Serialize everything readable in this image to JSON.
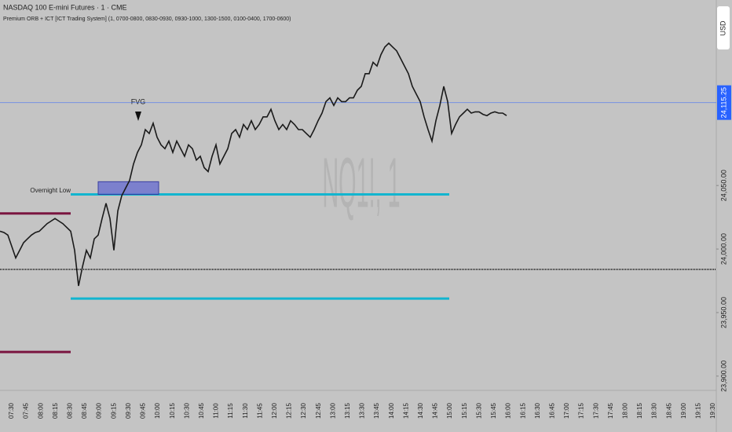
{
  "chart_data": {
    "type": "line",
    "title": "NASDAQ 100 E-mini Futures · 1 · CME",
    "subtitle": "Premium ORB + ICT [ICT Trading System] (1, 0700-0800, 0830-0930, 0930-1000, 1300-1500, 0100-0400, 1700-0600)",
    "watermark": "NQ1!, 1",
    "currency": "USD",
    "annotations": [
      "FVG",
      "Overnight Low"
    ],
    "color": "#1a1a1a",
    "ylim": [
      23890,
      24196
    ],
    "yticks": [
      {
        "value": 23900,
        "label": "23,900.00"
      },
      {
        "value": 23950,
        "label": "23,950.00"
      },
      {
        "value": 24000,
        "label": "24,000.00"
      },
      {
        "value": 24050,
        "label": "24,050.00"
      }
    ],
    "last_price": {
      "value": 24115.25,
      "label": "24,115.25",
      "color": "#2962ff"
    },
    "levels": [
      {
        "value": 24043,
        "color": "#12b5cf"
      },
      {
        "value": 23961,
        "color": "#12b5cf"
      },
      {
        "value": 24028,
        "color": "#7a1540"
      },
      {
        "value": 23919,
        "color": "#7a1540"
      },
      {
        "value": 23984,
        "color": "#333333"
      }
    ],
    "box": {
      "values": [
        24043,
        24053
      ],
      "color": "#6a6fd0"
    },
    "xticks": [
      "07:30",
      "07:45",
      "08:00",
      "08:15",
      "08:30",
      "08:45",
      "09:00",
      "09:15",
      "09:30",
      "09:45",
      "10:00",
      "10:15",
      "10:30",
      "10:45",
      "11:00",
      "11:15",
      "11:30",
      "11:45",
      "12:00",
      "12:15",
      "12:30",
      "12:45",
      "13:00",
      "13:15",
      "13:30",
      "13:45",
      "14:00",
      "14:15",
      "14:30",
      "14:45",
      "15:00",
      "15:15",
      "15:30",
      "15:45",
      "16:00",
      "16:15",
      "16:30",
      "16:45",
      "17:00",
      "17:15",
      "17:30",
      "17:45",
      "18:00",
      "18:15",
      "18:30",
      "18:45",
      "19:00",
      "19:15",
      "19:30"
    ],
    "values": [
      24014,
      24013,
      24011,
      24002,
      23993,
      23999,
      24005,
      24008,
      24011,
      24013,
      24014,
      24017,
      24020,
      24022,
      24024,
      24022,
      24020,
      24017,
      24014,
      23999,
      23971,
      23986,
      23999,
      23993,
      24008,
      24011,
      24024,
      24036,
      24024,
      23999,
      24030,
      24042,
      24048,
      24054,
      24067,
      24076,
      24082,
      24094,
      24091,
      24099,
      24088,
      24082,
      24079,
      24085,
      24076,
      24085,
      24079,
      24073,
      24082,
      24079,
      24070,
      24073,
      24064,
      24061,
      24073,
      24082,
      24067,
      24073,
      24079,
      24091,
      24094,
      24088,
      24098,
      24094,
      24101,
      24094,
      24098,
      24104,
      24104,
      24110,
      24101,
      24094,
      24098,
      24094,
      24101,
      24098,
      24094,
      24094,
      24091,
      24088,
      24094,
      24101,
      24107,
      24116,
      24119,
      24113,
      24119,
      24116,
      24116,
      24119,
      24119,
      24125,
      24128,
      24138,
      24138,
      24147,
      24144,
      24153,
      24159,
      24162,
      24159,
      24156,
      24150,
      24144,
      24138,
      24128,
      24122,
      24116,
      24104,
      24094,
      24085,
      24101,
      24113,
      24128,
      24116,
      24091,
      24098,
      24104,
      24107,
      24110,
      24107,
      24108,
      24108,
      24106,
      24105,
      24107,
      24108,
      24107,
      24107,
      24105
    ]
  }
}
